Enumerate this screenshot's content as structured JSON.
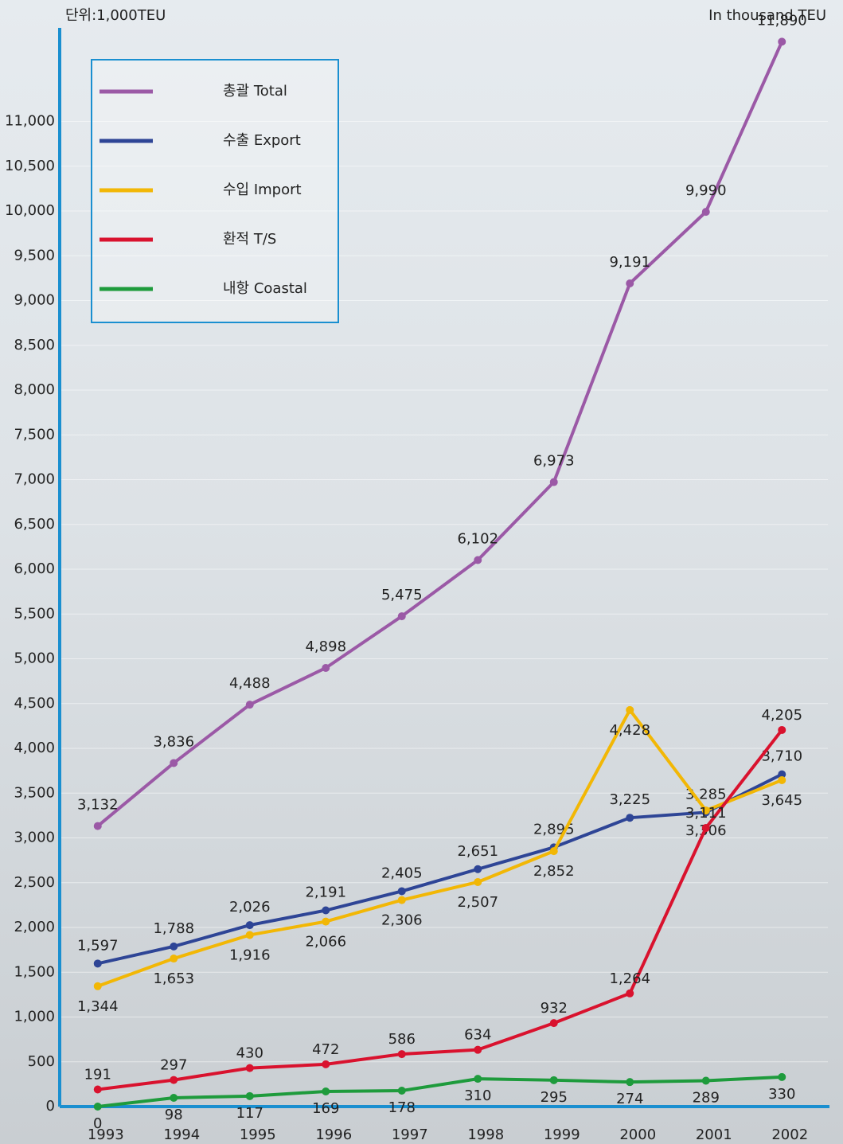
{
  "chart_data": {
    "type": "line",
    "unit_left": "단위:1,000TEU",
    "unit_right": "In thousand TEU",
    "categories": [
      "1993",
      "1994",
      "1995",
      "1996",
      "1997",
      "1998",
      "1999",
      "2000",
      "2001",
      "2002"
    ],
    "series": [
      {
        "name": "총괄 Total",
        "color": "#9b59a6",
        "values": [
          3132,
          3836,
          4488,
          4898,
          5475,
          6102,
          6973,
          9191,
          9990,
          11890
        ],
        "value_labels": [
          "3,132",
          "3,836",
          "4,488",
          "4,898",
          "5,475",
          "6,102",
          "6,973",
          "9,191",
          "9,990",
          "11,890"
        ]
      },
      {
        "name": "수출 Export",
        "color": "#2e4596",
        "values": [
          1597,
          1788,
          2026,
          2191,
          2405,
          2651,
          2895,
          3225,
          3285,
          3710
        ],
        "value_labels": [
          "1,597",
          "1,788",
          "2,026",
          "2,191",
          "2,405",
          "2,651",
          "2,895",
          "3,225",
          "3,285",
          "3,710"
        ]
      },
      {
        "name": "수입 Import",
        "color": "#f2b705",
        "values": [
          1344,
          1653,
          1916,
          2066,
          2306,
          2507,
          2852,
          4428,
          3306,
          3645
        ],
        "value_labels": [
          "1,344",
          "1,653",
          "1,916",
          "2,066",
          "2,306",
          "2,507",
          "2,852",
          "4,428",
          "3,306",
          "3,645"
        ]
      },
      {
        "name": "환적 T/S",
        "color": "#d9122e",
        "values": [
          191,
          297,
          430,
          472,
          586,
          634,
          932,
          1264,
          3111,
          4205
        ],
        "value_labels": [
          "191",
          "297",
          "430",
          "472",
          "586",
          "634",
          "932",
          "1,264",
          "3,111",
          "4,205"
        ]
      },
      {
        "name": "내항 Coastal",
        "color": "#1e9b3c",
        "values": [
          0,
          98,
          117,
          169,
          178,
          310,
          295,
          274,
          289,
          330
        ],
        "value_labels": [
          "0",
          "98",
          "117",
          "169",
          "178",
          "310",
          "295",
          "274",
          "289",
          "330"
        ]
      }
    ],
    "ylim": [
      0,
      12000
    ],
    "yticks": [
      0,
      500,
      {
        "value": 1000,
        "label": "1,000"
      },
      {
        "value": 1500,
        "label": "1,500"
      },
      {
        "value": 2000,
        "label": "2,000"
      },
      {
        "value": 2500,
        "label": "2,500"
      },
      {
        "value": 3000,
        "label": "3,000"
      },
      {
        "value": 3500,
        "label": "3,500"
      },
      {
        "value": 4000,
        "label": "4,000"
      },
      {
        "value": 4500,
        "label": "4,500"
      },
      {
        "value": 5000,
        "label": "5,000"
      },
      {
        "value": 5500,
        "label": "5,500"
      },
      {
        "value": 6000,
        "label": "6,000"
      },
      {
        "value": 6500,
        "label": "6,500"
      },
      {
        "value": 7000,
        "label": "7,000"
      },
      {
        "value": 7500,
        "label": "7,500"
      },
      {
        "value": 8000,
        "label": "8,000"
      },
      {
        "value": 8500,
        "label": "8,500"
      },
      {
        "value": 9000,
        "label": "9,000"
      },
      {
        "value": 9500,
        "label": "9,500"
      },
      {
        "value": 10000,
        "label": "10,000"
      },
      {
        "value": 10500,
        "label": "10,500"
      },
      {
        "value": 11000,
        "label": "11,000"
      }
    ],
    "grid": true
  }
}
